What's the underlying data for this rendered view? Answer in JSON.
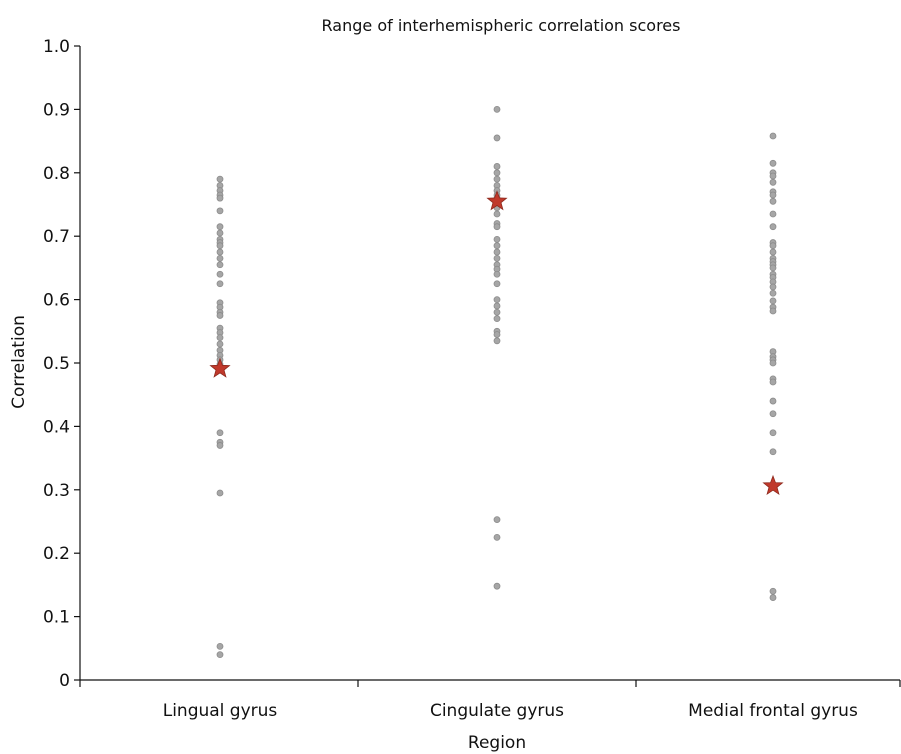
{
  "chart_data": {
    "type": "scatter",
    "title": "Range of interhemispheric correlation scores",
    "xlabel": "Region",
    "ylabel": "Correlation",
    "ylim": [
      0,
      1.0
    ],
    "yticks": [
      "0",
      "0.1",
      "0.2",
      "0.3",
      "0.4",
      "0.5",
      "0.6",
      "0.7",
      "0.8",
      "0.9",
      "1.0"
    ],
    "categories": [
      "Lingual gyrus",
      "Cingulate gyrus",
      "Medial frontal gyrus"
    ],
    "grid": false,
    "point_color": "#a6a6a6",
    "star_color": "#c0392b",
    "series": [
      {
        "category": "Lingual gyrus",
        "values": [
          0.79,
          0.78,
          0.772,
          0.765,
          0.76,
          0.74,
          0.715,
          0.705,
          0.695,
          0.69,
          0.685,
          0.675,
          0.665,
          0.655,
          0.64,
          0.625,
          0.595,
          0.588,
          0.58,
          0.575,
          0.555,
          0.548,
          0.54,
          0.53,
          0.52,
          0.512,
          0.505,
          0.498,
          0.49,
          0.39,
          0.375,
          0.37,
          0.295,
          0.053,
          0.04
        ],
        "highlight": 0.491
      },
      {
        "category": "Cingulate gyrus",
        "values": [
          0.9,
          0.855,
          0.81,
          0.8,
          0.79,
          0.78,
          0.772,
          0.765,
          0.76,
          0.752,
          0.745,
          0.735,
          0.72,
          0.715,
          0.695,
          0.685,
          0.675,
          0.665,
          0.655,
          0.648,
          0.64,
          0.625,
          0.6,
          0.59,
          0.58,
          0.57,
          0.55,
          0.545,
          0.535,
          0.253,
          0.225,
          0.148
        ],
        "highlight": 0.755
      },
      {
        "category": "Medial frontal gyrus",
        "values": [
          0.858,
          0.815,
          0.8,
          0.795,
          0.785,
          0.77,
          0.765,
          0.755,
          0.735,
          0.715,
          0.69,
          0.685,
          0.675,
          0.665,
          0.66,
          0.655,
          0.65,
          0.64,
          0.635,
          0.628,
          0.62,
          0.61,
          0.598,
          0.588,
          0.582,
          0.518,
          0.51,
          0.505,
          0.5,
          0.475,
          0.47,
          0.44,
          0.42,
          0.39,
          0.36,
          0.14,
          0.13
        ],
        "highlight": 0.306
      }
    ]
  }
}
